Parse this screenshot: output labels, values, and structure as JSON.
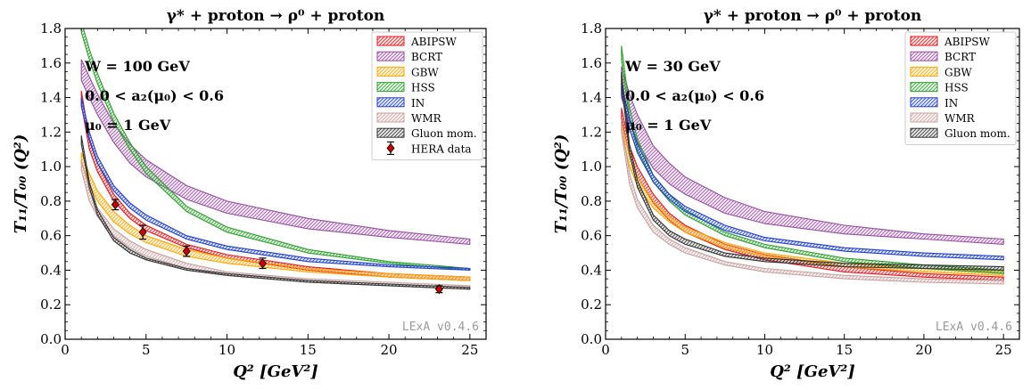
{
  "chart_data": [
    {
      "type": "line",
      "title": "γ* + proton → ρ⁰ + proton",
      "xlabel": "Q² [GeV²]",
      "ylabel": "T₁₁/T₀₀ (Q²)",
      "xlim": [
        0,
        26
      ],
      "ylim": [
        0,
        1.8
      ],
      "x_ticks": [
        "0",
        "5",
        "10",
        "15",
        "20",
        "25"
      ],
      "y_ticks": [
        "0.0",
        "0.2",
        "0.4",
        "0.6",
        "0.8",
        "1.0",
        "1.2",
        "1.4",
        "1.6",
        "1.8"
      ],
      "grid": false,
      "legend_position": "top-right",
      "annotations": [
        "W = 100 GeV",
        "0.0 < a₂(μ₀) < 0.6",
        "μ₀ = 1 GeV"
      ],
      "watermark": "LExA v0.4.6",
      "x": [
        1.0,
        1.5,
        2.0,
        3.0,
        4.0,
        5.0,
        7.5,
        10.0,
        15.0,
        20.0,
        25.0
      ],
      "series": [
        {
          "name": "ABIPSW",
          "color": "#e41a1c",
          "lower": [
            1.36,
            1.1,
            0.97,
            0.8,
            0.7,
            0.63,
            0.53,
            0.47,
            0.4,
            0.36,
            0.34
          ],
          "upper": [
            1.44,
            1.16,
            1.02,
            0.84,
            0.73,
            0.66,
            0.55,
            0.49,
            0.42,
            0.38,
            0.36
          ]
        },
        {
          "name": "BCRT",
          "color": "#984ea3",
          "lower": [
            1.5,
            1.4,
            1.3,
            1.14,
            1.02,
            0.94,
            0.81,
            0.73,
            0.64,
            0.59,
            0.55
          ],
          "upper": [
            1.62,
            1.52,
            1.42,
            1.25,
            1.13,
            1.04,
            0.89,
            0.8,
            0.7,
            0.63,
            0.58
          ]
        },
        {
          "name": "GBW",
          "color": "#ffa500",
          "lower": [
            1.02,
            0.9,
            0.8,
            0.68,
            0.61,
            0.56,
            0.48,
            0.44,
            0.39,
            0.36,
            0.34
          ],
          "upper": [
            1.08,
            0.96,
            0.86,
            0.74,
            0.66,
            0.6,
            0.52,
            0.47,
            0.41,
            0.38,
            0.36
          ]
        },
        {
          "name": "HSS",
          "color": "#2ca02c",
          "lower": [
            1.78,
            1.62,
            1.48,
            1.26,
            1.1,
            0.96,
            0.74,
            0.62,
            0.5,
            0.44,
            0.4
          ],
          "upper": [
            1.84,
            1.68,
            1.54,
            1.31,
            1.14,
            1.0,
            0.77,
            0.65,
            0.52,
            0.45,
            0.41
          ]
        },
        {
          "name": "IN",
          "color": "#1f3fcf",
          "lower": [
            1.35,
            1.15,
            1.02,
            0.86,
            0.76,
            0.69,
            0.58,
            0.52,
            0.45,
            0.42,
            0.4
          ],
          "upper": [
            1.4,
            1.2,
            1.06,
            0.89,
            0.79,
            0.72,
            0.6,
            0.54,
            0.47,
            0.43,
            0.41
          ]
        },
        {
          "name": "WMR",
          "color": "#c9a0a0",
          "lower": [
            0.98,
            0.8,
            0.71,
            0.6,
            0.53,
            0.48,
            0.41,
            0.37,
            0.33,
            0.31,
            0.29
          ],
          "upper": [
            1.04,
            0.86,
            0.76,
            0.64,
            0.57,
            0.52,
            0.44,
            0.39,
            0.35,
            0.33,
            0.31
          ]
        },
        {
          "name": "Gluon mom.",
          "color": "#333333",
          "lower": [
            1.13,
            0.88,
            0.72,
            0.57,
            0.5,
            0.46,
            0.4,
            0.37,
            0.33,
            0.31,
            0.29
          ],
          "upper": [
            1.18,
            0.91,
            0.75,
            0.59,
            0.52,
            0.47,
            0.41,
            0.38,
            0.34,
            0.32,
            0.3
          ]
        }
      ],
      "data_points": {
        "name": "HERA data",
        "color": "#cc0000",
        "points": [
          {
            "x": 3.1,
            "y": 0.78,
            "err": 0.03
          },
          {
            "x": 4.8,
            "y": 0.62,
            "err": 0.04
          },
          {
            "x": 7.5,
            "y": 0.51,
            "err": 0.03
          },
          {
            "x": 12.2,
            "y": 0.44,
            "err": 0.03
          },
          {
            "x": 23.1,
            "y": 0.29,
            "err": 0.02
          }
        ]
      }
    },
    {
      "type": "line",
      "title": "γ* + proton → ρ⁰ + proton",
      "xlabel": "Q² [GeV²]",
      "ylabel": "T₁₁/T₀₀ (Q²)",
      "xlim": [
        0,
        26
      ],
      "ylim": [
        0,
        1.8
      ],
      "x_ticks": [
        "0",
        "5",
        "10",
        "15",
        "20",
        "25"
      ],
      "y_ticks": [
        "0.0",
        "0.2",
        "0.4",
        "0.6",
        "0.8",
        "1.0",
        "1.2",
        "1.4",
        "1.6",
        "1.8"
      ],
      "grid": false,
      "legend_position": "top-right",
      "annotations": [
        "W = 30 GeV",
        "0.0 < a₂(μ₀) < 0.6",
        "μ₀ = 1 GeV"
      ],
      "watermark": "LExA v0.4.6",
      "x": [
        1.0,
        1.5,
        2.0,
        3.0,
        4.0,
        5.0,
        7.5,
        10.0,
        15.0,
        20.0,
        25.0
      ],
      "series": [
        {
          "name": "ABIPSW",
          "color": "#e41a1c",
          "lower": [
            1.28,
            1.06,
            0.94,
            0.79,
            0.69,
            0.62,
            0.52,
            0.46,
            0.39,
            0.36,
            0.34
          ],
          "upper": [
            1.34,
            1.12,
            1.0,
            0.84,
            0.73,
            0.66,
            0.55,
            0.49,
            0.42,
            0.38,
            0.36
          ]
        },
        {
          "name": "BCRT",
          "color": "#984ea3",
          "lower": [
            1.4,
            1.26,
            1.14,
            0.99,
            0.9,
            0.84,
            0.73,
            0.67,
            0.61,
            0.58,
            0.55
          ],
          "upper": [
            1.58,
            1.42,
            1.3,
            1.12,
            1.02,
            0.94,
            0.82,
            0.74,
            0.66,
            0.61,
            0.58
          ]
        },
        {
          "name": "GBW",
          "color": "#ffa500",
          "lower": [
            1.2,
            1.0,
            0.89,
            0.76,
            0.68,
            0.62,
            0.53,
            0.48,
            0.42,
            0.39,
            0.37
          ],
          "upper": [
            1.26,
            1.06,
            0.94,
            0.8,
            0.71,
            0.65,
            0.56,
            0.5,
            0.44,
            0.41,
            0.39
          ]
        },
        {
          "name": "HSS",
          "color": "#2ca02c",
          "lower": [
            1.62,
            1.28,
            1.1,
            0.91,
            0.8,
            0.72,
            0.6,
            0.53,
            0.45,
            0.41,
            0.38
          ],
          "upper": [
            1.7,
            1.34,
            1.16,
            0.95,
            0.84,
            0.75,
            0.62,
            0.55,
            0.47,
            0.43,
            0.4
          ]
        },
        {
          "name": "IN",
          "color": "#1f3fcf",
          "lower": [
            1.42,
            1.22,
            1.08,
            0.91,
            0.81,
            0.74,
            0.63,
            0.57,
            0.51,
            0.48,
            0.46
          ],
          "upper": [
            1.48,
            1.28,
            1.13,
            0.95,
            0.84,
            0.77,
            0.66,
            0.59,
            0.53,
            0.5,
            0.48
          ]
        },
        {
          "name": "WMR",
          "color": "#c9a0a0",
          "lower": [
            1.2,
            0.9,
            0.76,
            0.62,
            0.55,
            0.5,
            0.43,
            0.39,
            0.35,
            0.33,
            0.32
          ],
          "upper": [
            1.26,
            0.96,
            0.81,
            0.66,
            0.58,
            0.53,
            0.45,
            0.41,
            0.37,
            0.35,
            0.34
          ]
        },
        {
          "name": "Gluon mom.",
          "color": "#333333",
          "lower": [
            1.48,
            1.08,
            0.88,
            0.69,
            0.6,
            0.55,
            0.48,
            0.45,
            0.42,
            0.41,
            0.4
          ],
          "upper": [
            1.55,
            1.13,
            0.92,
            0.72,
            0.63,
            0.58,
            0.5,
            0.47,
            0.44,
            0.43,
            0.42
          ]
        }
      ]
    }
  ]
}
